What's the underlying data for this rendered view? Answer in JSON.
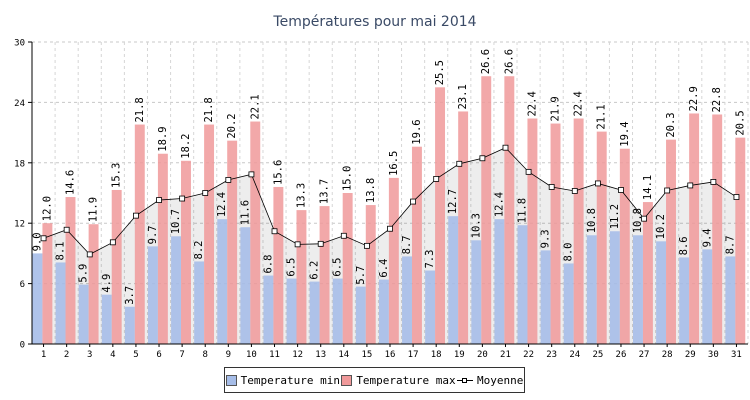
{
  "chart_data": {
    "type": "bar",
    "title": "Températures pour mai 2014",
    "xlabel": "",
    "ylabel": "",
    "ylim": [
      0,
      30
    ],
    "yticks": [
      0,
      6,
      12,
      18,
      24,
      30
    ],
    "grid": true,
    "legend_position": "bottom",
    "categories": [
      "1",
      "2",
      "3",
      "4",
      "5",
      "6",
      "7",
      "8",
      "9",
      "10",
      "11",
      "12",
      "13",
      "14",
      "15",
      "16",
      "17",
      "18",
      "19",
      "20",
      "21",
      "22",
      "23",
      "24",
      "25",
      "26",
      "27",
      "28",
      "29",
      "30",
      "31"
    ],
    "series": [
      {
        "name": "Temperature min",
        "kind": "bar",
        "color": "#a6bde8",
        "values": [
          9.0,
          8.1,
          5.9,
          4.9,
          3.7,
          9.7,
          10.7,
          8.2,
          12.4,
          11.6,
          6.8,
          6.5,
          6.2,
          6.5,
          5.7,
          6.4,
          8.7,
          7.3,
          12.7,
          10.3,
          12.4,
          11.8,
          9.3,
          8.0,
          10.8,
          11.2,
          10.8,
          10.2,
          8.6,
          9.4,
          8.7
        ]
      },
      {
        "name": "Temperature max",
        "kind": "bar",
        "color": "#f0999a",
        "values": [
          12.0,
          14.6,
          11.9,
          15.3,
          21.8,
          18.9,
          18.2,
          21.8,
          20.2,
          22.1,
          15.6,
          13.3,
          13.7,
          15.0,
          13.8,
          16.5,
          19.6,
          25.5,
          23.1,
          26.6,
          26.6,
          22.4,
          21.9,
          22.4,
          21.1,
          19.4,
          14.1,
          20.3,
          22.9,
          22.8,
          20.5
        ]
      },
      {
        "name": "Moyenne",
        "kind": "line",
        "color": "#000000",
        "values": [
          10.5,
          11.35,
          8.9,
          10.1,
          12.75,
          14.3,
          14.45,
          15.0,
          16.3,
          16.85,
          11.2,
          9.9,
          9.95,
          10.75,
          9.75,
          11.45,
          14.15,
          16.4,
          17.9,
          18.45,
          19.5,
          17.1,
          15.6,
          15.2,
          15.95,
          15.3,
          12.45,
          15.25,
          15.75,
          16.1,
          14.6
        ]
      }
    ]
  }
}
